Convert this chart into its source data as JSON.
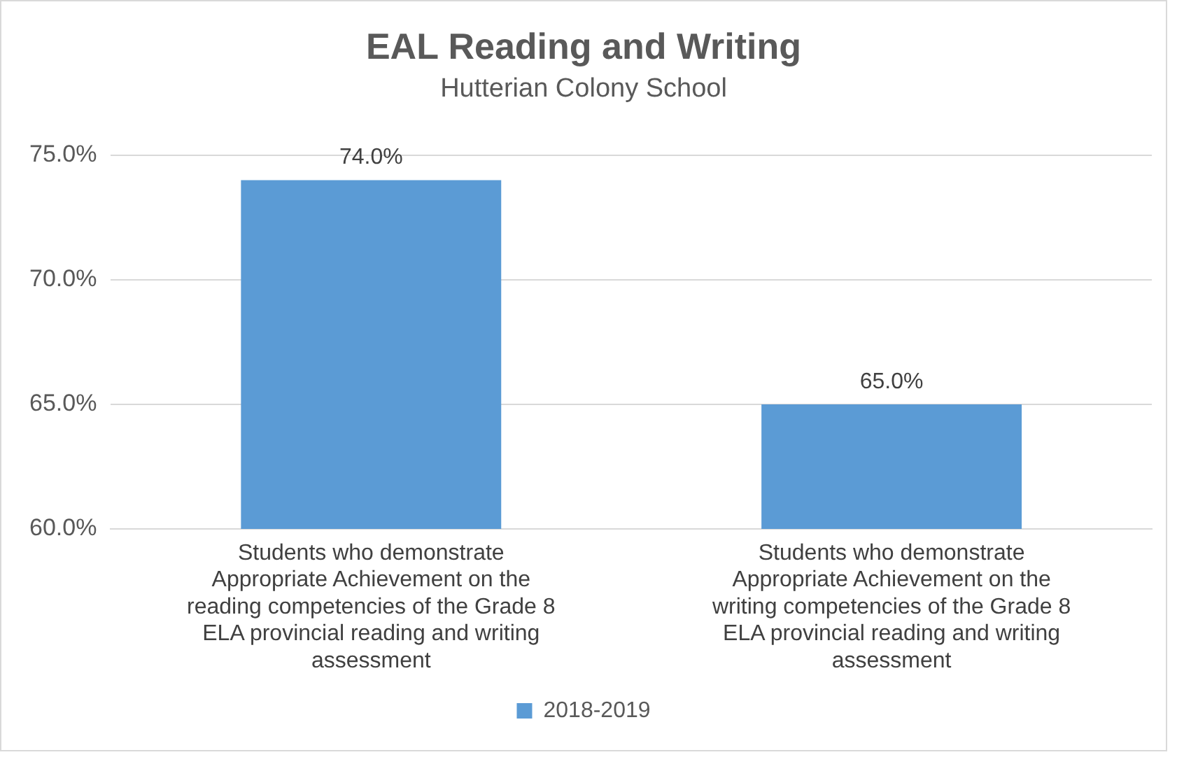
{
  "chart_data": {
    "type": "bar",
    "title": "EAL Reading and Writing",
    "subtitle": "Hutterian Colony School",
    "categories": [
      "Students who demonstrate Appropriate Achievement on the reading competencies of the Grade 8 ELA provincial reading and writing assessment",
      "Students who demonstrate Appropriate Achievement on the writing competencies of the Grade 8 ELA provincial reading and writing assessment"
    ],
    "series": [
      {
        "name": "2018-2019",
        "color": "#5b9bd5",
        "values": [
          74.0,
          65.0
        ],
        "value_labels": [
          "74.0%",
          "65.0%"
        ]
      }
    ],
    "ylim": [
      60,
      75
    ],
    "yticks": [
      {
        "value": 60,
        "label": "60.0%"
      },
      {
        "value": 65,
        "label": "65.0%"
      },
      {
        "value": 70,
        "label": "70.0%"
      },
      {
        "value": 75,
        "label": "75.0%"
      }
    ],
    "grid": "y",
    "legend": "bottom"
  }
}
